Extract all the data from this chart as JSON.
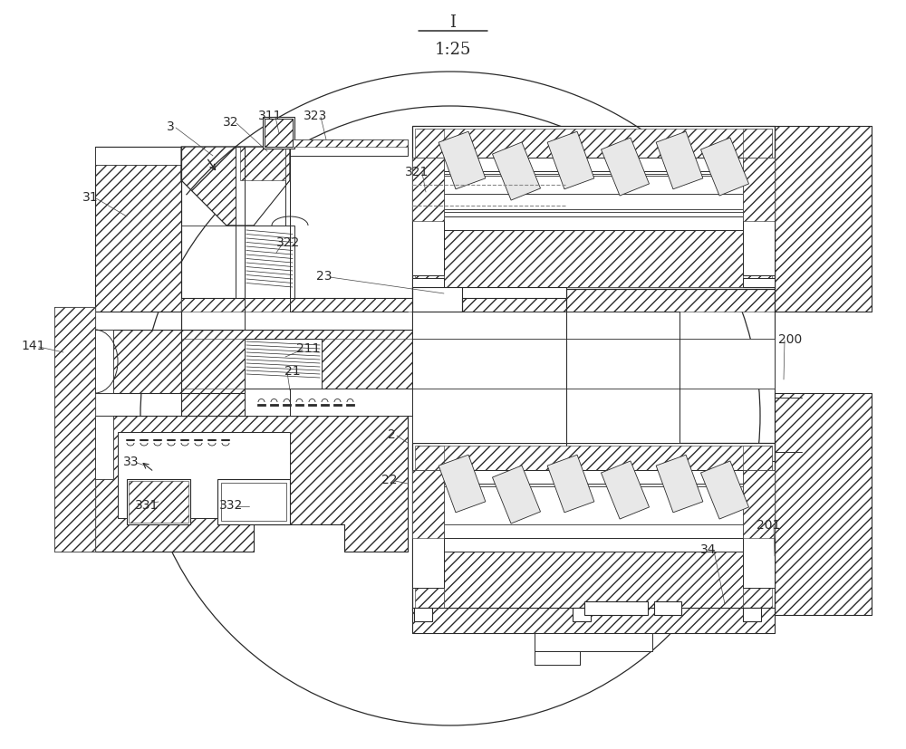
{
  "title_label": "I",
  "scale_label": "1:25",
  "bg_color": "#ffffff",
  "line_color": "#2a2a2a",
  "label_color": "#2a2a2a",
  "fig_width": 10.0,
  "fig_height": 8.28,
  "dpi": 100,
  "hatch_density": "///",
  "labels": [
    [
      "3",
      185,
      143
    ],
    [
      "32",
      255,
      138
    ],
    [
      "311",
      300,
      132
    ],
    [
      "323",
      345,
      130
    ],
    [
      "31",
      100,
      218
    ],
    [
      "321",
      462,
      192
    ],
    [
      "322",
      320,
      268
    ],
    [
      "23",
      355,
      308
    ],
    [
      "141",
      37,
      385
    ],
    [
      "211",
      338,
      388
    ],
    [
      "21",
      322,
      412
    ],
    [
      "2",
      430,
      482
    ],
    [
      "22",
      428,
      532
    ],
    [
      "33",
      145,
      512
    ],
    [
      "331",
      162,
      558
    ],
    [
      "332",
      255,
      558
    ],
    [
      "200",
      870,
      375
    ],
    [
      "201",
      845,
      582
    ],
    [
      "34",
      785,
      608
    ]
  ]
}
